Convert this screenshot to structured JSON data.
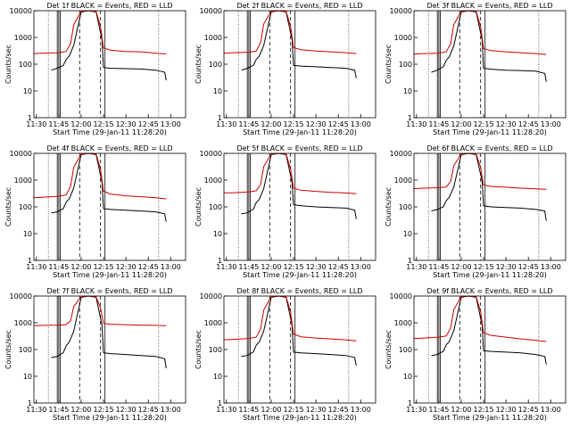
{
  "colors": {
    "events": "#000000",
    "lld": "#cc0000",
    "axis": "#000000"
  },
  "chart_data": [
    {
      "type": "line",
      "title": "Det 1f BLACK = Events, RED = LLD",
      "xlabel": "Start Time (29-Jan-11 11:28:20)",
      "ylabel": "Counts/sec",
      "xticks": [
        "11:30",
        "11:45",
        "12:00",
        "12:15",
        "12:30",
        "12:45",
        "13:00"
      ],
      "yticks": [
        "1",
        "10",
        "100",
        "1000",
        "10000"
      ],
      "yscale": "log",
      "ylim": [
        1,
        10000
      ],
      "xlim": [
        "11:28:20",
        "13:10:00"
      ],
      "series": [
        {
          "name": "Events",
          "x": [
            "11:40",
            "11:44",
            "11:46",
            "11:48",
            "11:50",
            "11:52",
            "11:55",
            "12:00",
            "12:05",
            "12:10",
            "12:14",
            "12:15",
            "12:20",
            "12:30",
            "12:40",
            "12:50",
            "12:56",
            "12:57"
          ],
          "y": [
            60,
            70,
            80,
            90,
            150,
            200,
            500,
            9000,
            10000,
            9000,
            800,
            75,
            70,
            68,
            66,
            60,
            50,
            25
          ]
        },
        {
          "name": "LLD",
          "x": [
            "11:28",
            "11:35",
            "11:45",
            "11:50",
            "11:53",
            "11:55",
            "12:00",
            "12:05",
            "12:10",
            "12:13",
            "12:15",
            "12:20",
            "12:30",
            "12:40",
            "12:50",
            "12:57"
          ],
          "y": [
            250,
            260,
            270,
            300,
            600,
            3000,
            9500,
            10000,
            9500,
            2500,
            400,
            330,
            300,
            290,
            260,
            240
          ]
        }
      ]
    },
    {
      "type": "line",
      "title": "Det 2f BLACK = Events, RED = LLD",
      "xlabel": "Start Time (29-Jan-11 11:28:20)",
      "ylabel": "Counts/sec",
      "xticks": [
        "11:30",
        "11:45",
        "12:00",
        "12:15",
        "12:30",
        "12:45",
        "13:00"
      ],
      "yticks": [
        "1",
        "10",
        "100",
        "1000",
        "10000"
      ],
      "yscale": "log",
      "ylim": [
        1,
        10000
      ],
      "xlim": [
        "11:28:20",
        "13:10:00"
      ],
      "series": [
        {
          "name": "Events",
          "x": [
            "11:40",
            "11:44",
            "11:46",
            "11:48",
            "11:50",
            "11:52",
            "11:55",
            "12:00",
            "12:05",
            "12:10",
            "12:14",
            "12:15",
            "12:20",
            "12:30",
            "12:40",
            "12:50",
            "12:56",
            "12:57"
          ],
          "y": [
            60,
            70,
            80,
            90,
            150,
            200,
            500,
            9000,
            10000,
            9000,
            800,
            90,
            85,
            80,
            75,
            70,
            60,
            30
          ]
        },
        {
          "name": "LLD",
          "x": [
            "11:28",
            "11:35",
            "11:45",
            "11:50",
            "11:53",
            "11:55",
            "12:00",
            "12:05",
            "12:10",
            "12:13",
            "12:15",
            "12:20",
            "12:30",
            "12:40",
            "12:50",
            "12:57"
          ],
          "y": [
            260,
            270,
            280,
            310,
            650,
            3200,
            9500,
            10000,
            9500,
            2600,
            420,
            350,
            310,
            290,
            270,
            250
          ]
        }
      ]
    },
    {
      "type": "line",
      "title": "Det 3f BLACK = Events, RED = LLD",
      "xlabel": "Start Time (29-Jan-11 11:28:20)",
      "ylabel": "Counts/sec",
      "xticks": [
        "11:30",
        "11:45",
        "12:00",
        "12:15",
        "12:30",
        "12:45",
        "13:00"
      ],
      "yticks": [
        "1",
        "10",
        "100",
        "1000",
        "10000"
      ],
      "yscale": "log",
      "ylim": [
        1,
        10000
      ],
      "xlim": [
        "11:28:20",
        "13:10:00"
      ],
      "series": [
        {
          "name": "Events",
          "x": [
            "11:40",
            "11:44",
            "11:46",
            "11:48",
            "11:50",
            "11:52",
            "11:55",
            "12:00",
            "12:05",
            "12:10",
            "12:14",
            "12:15",
            "12:20",
            "12:30",
            "12:40",
            "12:50",
            "12:56",
            "12:57"
          ],
          "y": [
            50,
            60,
            70,
            80,
            140,
            190,
            480,
            9000,
            10000,
            9000,
            800,
            70,
            65,
            60,
            58,
            55,
            45,
            22
          ]
        },
        {
          "name": "LLD",
          "x": [
            "11:28",
            "11:35",
            "11:45",
            "11:50",
            "11:53",
            "11:55",
            "12:00",
            "12:05",
            "12:10",
            "12:13",
            "12:15",
            "12:20",
            "12:30",
            "12:40",
            "12:50",
            "12:57"
          ],
          "y": [
            240,
            250,
            260,
            290,
            600,
            3000,
            9500,
            10000,
            9500,
            2500,
            380,
            320,
            290,
            270,
            250,
            230
          ]
        }
      ]
    },
    {
      "type": "line",
      "title": "Det 4f BLACK = Events, RED = LLD",
      "xlabel": "Start Time (29-Jan-11 11:28:20)",
      "ylabel": "Counts/sec",
      "xticks": [
        "11:30",
        "11:45",
        "12:00",
        "12:15",
        "12:30",
        "12:45",
        "13:00"
      ],
      "yticks": [
        "1",
        "10",
        "100",
        "1000",
        "10000"
      ],
      "yscale": "log",
      "ylim": [
        1,
        10000
      ],
      "xlim": [
        "11:28:20",
        "13:10:00"
      ],
      "series": [
        {
          "name": "Events",
          "x": [
            "11:40",
            "11:44",
            "11:46",
            "11:48",
            "11:50",
            "11:52",
            "11:55",
            "12:00",
            "12:05",
            "12:10",
            "12:14",
            "12:15",
            "12:20",
            "12:30",
            "12:40",
            "12:50",
            "12:56",
            "12:57"
          ],
          "y": [
            60,
            65,
            75,
            85,
            150,
            200,
            500,
            9000,
            10000,
            9000,
            800,
            85,
            80,
            75,
            70,
            65,
            55,
            28
          ]
        },
        {
          "name": "LLD",
          "x": [
            "11:28",
            "11:35",
            "11:45",
            "11:50",
            "11:53",
            "11:55",
            "12:00",
            "12:05",
            "12:10",
            "12:13",
            "12:15",
            "12:20",
            "12:30",
            "12:40",
            "12:50",
            "12:57"
          ],
          "y": [
            220,
            230,
            250,
            280,
            600,
            3000,
            9500,
            10000,
            9500,
            2500,
            380,
            300,
            260,
            240,
            220,
            200
          ]
        }
      ]
    },
    {
      "type": "line",
      "title": "Det 5f BLACK = Events, RED = LLD",
      "xlabel": "Start Time (29-Jan-11 11:28:20)",
      "ylabel": "Counts/sec",
      "xticks": [
        "11:30",
        "11:45",
        "12:00",
        "12:15",
        "12:30",
        "12:45",
        "13:00"
      ],
      "yticks": [
        "1",
        "10",
        "100",
        "1000",
        "10000"
      ],
      "yscale": "log",
      "ylim": [
        1,
        10000
      ],
      "xlim": [
        "11:28:20",
        "13:10:00"
      ],
      "series": [
        {
          "name": "Events",
          "x": [
            "11:40",
            "11:44",
            "11:46",
            "11:48",
            "11:50",
            "11:52",
            "11:55",
            "12:00",
            "12:05",
            "12:10",
            "12:14",
            "12:15",
            "12:20",
            "12:30",
            "12:40",
            "12:50",
            "12:56",
            "12:57"
          ],
          "y": [
            55,
            60,
            70,
            80,
            145,
            190,
            480,
            9000,
            10000,
            9000,
            800,
            120,
            110,
            100,
            95,
            90,
            75,
            35
          ]
        },
        {
          "name": "LLD",
          "x": [
            "11:28",
            "11:35",
            "11:45",
            "11:50",
            "11:53",
            "11:55",
            "12:00",
            "12:05",
            "12:10",
            "12:13",
            "12:15",
            "12:20",
            "12:30",
            "12:40",
            "12:50",
            "12:57"
          ],
          "y": [
            330,
            340,
            360,
            400,
            700,
            3200,
            9500,
            10000,
            9500,
            2600,
            500,
            420,
            380,
            350,
            330,
            310
          ]
        }
      ]
    },
    {
      "type": "line",
      "title": "Det 6f BLACK = Events, RED = LLD",
      "xlabel": "Start Time (29-Jan-11 11:28:20)",
      "ylabel": "Counts/sec",
      "xticks": [
        "11:30",
        "11:45",
        "12:00",
        "12:15",
        "12:30",
        "12:45",
        "13:00"
      ],
      "yticks": [
        "1",
        "10",
        "100",
        "1000",
        "10000"
      ],
      "yscale": "log",
      "ylim": [
        1,
        10000
      ],
      "xlim": [
        "11:28:20",
        "13:10:00"
      ],
      "series": [
        {
          "name": "Events",
          "x": [
            "11:40",
            "11:44",
            "11:46",
            "11:48",
            "11:50",
            "11:52",
            "11:55",
            "12:00",
            "12:05",
            "12:10",
            "12:14",
            "12:15",
            "12:20",
            "12:30",
            "12:40",
            "12:50",
            "12:56",
            "12:57"
          ],
          "y": [
            70,
            80,
            90,
            100,
            170,
            230,
            550,
            9000,
            10000,
            9000,
            900,
            110,
            100,
            95,
            90,
            80,
            70,
            30
          ]
        },
        {
          "name": "LLD",
          "x": [
            "11:28",
            "11:35",
            "11:45",
            "11:50",
            "11:53",
            "11:55",
            "12:00",
            "12:05",
            "12:10",
            "12:13",
            "12:15",
            "12:20",
            "12:30",
            "12:40",
            "12:50",
            "12:57"
          ],
          "y": [
            480,
            500,
            520,
            560,
            900,
            3500,
            9500,
            10000,
            9500,
            3000,
            650,
            580,
            540,
            500,
            470,
            450
          ]
        }
      ]
    },
    {
      "type": "line",
      "title": "Det 7f BLACK = Events, RED = LLD",
      "xlabel": "Start Time (29-Jan-11 11:28:20)",
      "ylabel": "Counts/sec",
      "xticks": [
        "11:30",
        "11:45",
        "12:00",
        "12:15",
        "12:30",
        "12:45",
        "13:00"
      ],
      "yticks": [
        "1",
        "10",
        "100",
        "1000",
        "10000"
      ],
      "yscale": "log",
      "ylim": [
        1,
        10000
      ],
      "xlim": [
        "11:28:20",
        "13:10:00"
      ],
      "series": [
        {
          "name": "Events",
          "x": [
            "11:40",
            "11:44",
            "11:46",
            "11:48",
            "11:50",
            "11:52",
            "11:55",
            "12:00",
            "12:05",
            "12:10",
            "12:14",
            "12:15",
            "12:20",
            "12:30",
            "12:40",
            "12:50",
            "12:56",
            "12:57"
          ],
          "y": [
            50,
            55,
            65,
            75,
            140,
            190,
            480,
            9000,
            10000,
            9000,
            800,
            75,
            70,
            65,
            60,
            55,
            45,
            20
          ]
        },
        {
          "name": "LLD",
          "x": [
            "11:28",
            "11:35",
            "11:45",
            "11:50",
            "11:53",
            "11:55",
            "12:00",
            "12:05",
            "12:10",
            "12:13",
            "12:15",
            "12:20",
            "12:30",
            "12:40",
            "12:50",
            "12:57"
          ],
          "y": [
            780,
            800,
            820,
            860,
            1200,
            4000,
            9500,
            10000,
            9500,
            3500,
            950,
            880,
            850,
            820,
            800,
            780
          ]
        }
      ]
    },
    {
      "type": "line",
      "title": "Det 8f BLACK = Events, RED = LLD",
      "xlabel": "Start Time (29-Jan-11 11:28:20)",
      "ylabel": "Counts/sec",
      "xticks": [
        "11:30",
        "11:45",
        "12:00",
        "12:15",
        "12:30",
        "12:45",
        "13:00"
      ],
      "yticks": [
        "1",
        "10",
        "100",
        "1000",
        "10000"
      ],
      "yscale": "log",
      "ylim": [
        1,
        10000
      ],
      "xlim": [
        "11:28:20",
        "13:10:00"
      ],
      "series": [
        {
          "name": "Events",
          "x": [
            "11:40",
            "11:44",
            "11:46",
            "11:48",
            "11:50",
            "11:52",
            "11:55",
            "12:00",
            "12:05",
            "12:10",
            "12:14",
            "12:15",
            "12:20",
            "12:30",
            "12:40",
            "12:50",
            "12:56",
            "12:57"
          ],
          "y": [
            55,
            60,
            70,
            80,
            145,
            195,
            490,
            9000,
            10000,
            9000,
            800,
            80,
            75,
            70,
            65,
            60,
            50,
            25
          ]
        },
        {
          "name": "LLD",
          "x": [
            "11:28",
            "11:35",
            "11:45",
            "11:50",
            "11:53",
            "11:55",
            "12:00",
            "12:05",
            "12:10",
            "12:13",
            "12:15",
            "12:20",
            "12:30",
            "12:40",
            "12:50",
            "12:57"
          ],
          "y": [
            230,
            240,
            260,
            290,
            600,
            3000,
            9500,
            10000,
            9500,
            2500,
            380,
            300,
            270,
            250,
            230,
            210
          ]
        }
      ]
    },
    {
      "type": "line",
      "title": "Det 9f BLACK = Events, RED = LLD",
      "xlabel": "Start Time (29-Jan-11 11:28:20)",
      "ylabel": "Counts/sec",
      "xticks": [
        "11:30",
        "11:45",
        "12:00",
        "12:15",
        "12:30",
        "12:45",
        "13:00"
      ],
      "yticks": [
        "1",
        "10",
        "100",
        "1000",
        "10000"
      ],
      "yscale": "log",
      "ylim": [
        1,
        10000
      ],
      "xlim": [
        "11:28:20",
        "13:10:00"
      ],
      "series": [
        {
          "name": "Events",
          "x": [
            "11:40",
            "11:44",
            "11:46",
            "11:48",
            "11:50",
            "11:52",
            "11:55",
            "12:00",
            "12:05",
            "12:10",
            "12:14",
            "12:15",
            "12:20",
            "12:30",
            "12:40",
            "12:50",
            "12:56",
            "12:57"
          ],
          "y": [
            60,
            65,
            75,
            85,
            150,
            200,
            500,
            9000,
            10000,
            9000,
            800,
            90,
            85,
            80,
            75,
            65,
            55,
            28
          ]
        },
        {
          "name": "LLD",
          "x": [
            "11:28",
            "11:35",
            "11:45",
            "11:50",
            "11:53",
            "11:55",
            "12:00",
            "12:05",
            "12:10",
            "12:13",
            "12:15",
            "12:20",
            "12:30",
            "12:40",
            "12:50",
            "12:57"
          ],
          "y": [
            260,
            270,
            290,
            320,
            650,
            3100,
            9500,
            10000,
            9500,
            2600,
            420,
            340,
            290,
            250,
            220,
            200
          ]
        }
      ]
    }
  ]
}
